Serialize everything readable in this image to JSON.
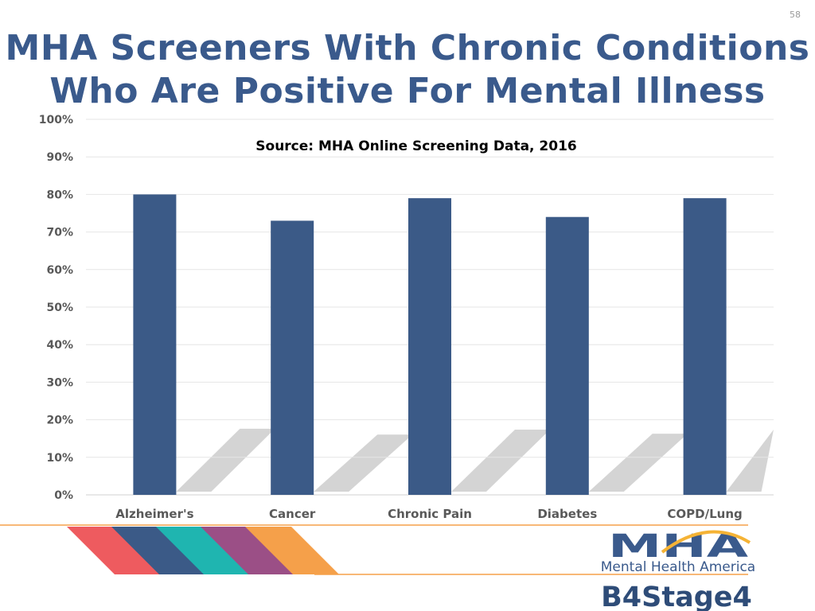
{
  "slide": {
    "number": "58",
    "title_line1": "MHA Screeners With Chronic Conditions",
    "title_line2": "Who Are Positive For Mental Illness"
  },
  "colors": {
    "title": "#3a5a8c",
    "bar": "#3b5a87",
    "shadow": "#d4d4d4",
    "stripes": [
      "#ee5b5f",
      "#3b5a87",
      "#1fb5b0",
      "#9b4f86",
      "#f5a04a"
    ]
  },
  "chart_data": {
    "type": "bar",
    "subtitle": "Source: MHA Online Screening Data, 2016",
    "categories": [
      "Alzheimer's",
      "Cancer",
      "Chronic Pain",
      "Diabetes",
      "COPD/Lung"
    ],
    "values": [
      80,
      73,
      79,
      74,
      79
    ],
    "ylim": [
      0,
      100
    ],
    "yticks": [
      "0%",
      "10%",
      "20%",
      "30%",
      "40%",
      "50%",
      "60%",
      "70%",
      "80%",
      "90%",
      "100%"
    ],
    "xlabel": "",
    "ylabel": "",
    "grid": true,
    "legend": "none"
  },
  "logo": {
    "mark": "MHA",
    "name": "Mental Health America",
    "campaign": "B4Stage4"
  }
}
